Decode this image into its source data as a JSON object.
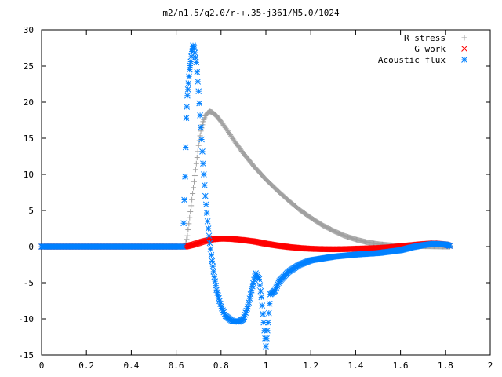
{
  "chart_data": {
    "type": "scatter",
    "title": "m2/n1.5/q2.0/r-+.35-j361/M5.0/1024",
    "xlabel": "",
    "ylabel": "",
    "xlim": [
      0,
      2
    ],
    "ylim": [
      -15,
      30
    ],
    "x_ticks": [
      "0",
      "0.2",
      "0.4",
      "0.6",
      "0.8",
      "1",
      "1.2",
      "1.4",
      "1.6",
      "1.8",
      "2"
    ],
    "y_ticks": [
      "30",
      "25",
      "20",
      "15",
      "10",
      "5",
      "0",
      "-5",
      "-10",
      "-15"
    ],
    "grid": false,
    "legend_position": "top-right",
    "series": [
      {
        "name": "R stress",
        "marker": "+",
        "color": "#a0a0a0",
        "points": [
          [
            0.0,
            0.0
          ],
          [
            0.1,
            0.0
          ],
          [
            0.2,
            0.0
          ],
          [
            0.3,
            0.0
          ],
          [
            0.4,
            0.0
          ],
          [
            0.5,
            0.0
          ],
          [
            0.6,
            0.0
          ],
          [
            0.64,
            0.0
          ],
          [
            0.65,
            1.5
          ],
          [
            0.66,
            4.0
          ],
          [
            0.67,
            6.5
          ],
          [
            0.68,
            9.0
          ],
          [
            0.69,
            11.5
          ],
          [
            0.7,
            14.0
          ],
          [
            0.71,
            16.0
          ],
          [
            0.72,
            17.3
          ],
          [
            0.73,
            18.1
          ],
          [
            0.74,
            18.5
          ],
          [
            0.75,
            18.7
          ],
          [
            0.76,
            18.6
          ],
          [
            0.78,
            18.1
          ],
          [
            0.8,
            17.3
          ],
          [
            0.83,
            16.0
          ],
          [
            0.86,
            14.6
          ],
          [
            0.9,
            12.9
          ],
          [
            0.95,
            11.0
          ],
          [
            1.0,
            9.3
          ],
          [
            1.05,
            7.8
          ],
          [
            1.1,
            6.4
          ],
          [
            1.15,
            5.1
          ],
          [
            1.2,
            4.0
          ],
          [
            1.25,
            3.0
          ],
          [
            1.3,
            2.2
          ],
          [
            1.35,
            1.5
          ],
          [
            1.4,
            1.0
          ],
          [
            1.45,
            0.6
          ],
          [
            1.5,
            0.35
          ],
          [
            1.55,
            0.2
          ],
          [
            1.6,
            0.1
          ],
          [
            1.7,
            0.05
          ],
          [
            1.8,
            0.0
          ],
          [
            1.82,
            0.0
          ]
        ]
      },
      {
        "name": "G work",
        "marker": "x",
        "color": "#ff0000",
        "points": [
          [
            0.0,
            0.0
          ],
          [
            0.2,
            0.0
          ],
          [
            0.4,
            0.0
          ],
          [
            0.6,
            0.0
          ],
          [
            0.64,
            0.0
          ],
          [
            0.68,
            0.3
          ],
          [
            0.72,
            0.7
          ],
          [
            0.76,
            1.0
          ],
          [
            0.8,
            1.1
          ],
          [
            0.85,
            1.05
          ],
          [
            0.9,
            0.9
          ],
          [
            0.95,
            0.7
          ],
          [
            1.0,
            0.4
          ],
          [
            1.05,
            0.15
          ],
          [
            1.1,
            -0.05
          ],
          [
            1.15,
            -0.2
          ],
          [
            1.2,
            -0.3
          ],
          [
            1.25,
            -0.35
          ],
          [
            1.3,
            -0.37
          ],
          [
            1.35,
            -0.35
          ],
          [
            1.4,
            -0.3
          ],
          [
            1.45,
            -0.25
          ],
          [
            1.5,
            -0.2
          ],
          [
            1.55,
            -0.1
          ],
          [
            1.6,
            0.05
          ],
          [
            1.65,
            0.2
          ],
          [
            1.7,
            0.35
          ],
          [
            1.75,
            0.45
          ],
          [
            1.8,
            0.3
          ],
          [
            1.82,
            0.1
          ]
        ]
      },
      {
        "name": "Acoustic flux",
        "marker": "*",
        "color": "#0080ff",
        "points": [
          [
            0.0,
            0.0
          ],
          [
            0.1,
            0.0
          ],
          [
            0.2,
            0.0
          ],
          [
            0.3,
            0.0
          ],
          [
            0.4,
            0.0
          ],
          [
            0.5,
            0.0
          ],
          [
            0.6,
            0.0
          ],
          [
            0.63,
            0.0
          ],
          [
            0.64,
            9.7
          ],
          [
            0.645,
            17.8
          ],
          [
            0.65,
            20.9
          ],
          [
            0.655,
            22.6
          ],
          [
            0.66,
            24.5
          ],
          [
            0.665,
            25.6
          ],
          [
            0.67,
            27.0
          ],
          [
            0.675,
            27.8
          ],
          [
            0.68,
            27.5
          ],
          [
            0.69,
            25.5
          ],
          [
            0.7,
            21.5
          ],
          [
            0.71,
            16.5
          ],
          [
            0.72,
            11.5
          ],
          [
            0.73,
            7.0
          ],
          [
            0.74,
            3.5
          ],
          [
            0.75,
            0.5
          ],
          [
            0.76,
            -2.0
          ],
          [
            0.77,
            -4.2
          ],
          [
            0.78,
            -6.0
          ],
          [
            0.8,
            -8.3
          ],
          [
            0.82,
            -9.6
          ],
          [
            0.85,
            -10.3
          ],
          [
            0.88,
            -10.4
          ],
          [
            0.9,
            -10.0
          ],
          [
            0.92,
            -8.3
          ],
          [
            0.94,
            -5.5
          ],
          [
            0.955,
            -3.7
          ],
          [
            0.97,
            -4.5
          ],
          [
            0.98,
            -7.0
          ],
          [
            0.99,
            -10.5
          ],
          [
            1.0,
            -13.8
          ],
          [
            1.01,
            -10.5
          ],
          [
            1.02,
            -6.6
          ],
          [
            1.04,
            -6.1
          ],
          [
            1.06,
            -4.8
          ],
          [
            1.1,
            -3.5
          ],
          [
            1.15,
            -2.5
          ],
          [
            1.2,
            -1.9
          ],
          [
            1.3,
            -1.4
          ],
          [
            1.4,
            -1.1
          ],
          [
            1.5,
            -0.9
          ],
          [
            1.6,
            -0.5
          ],
          [
            1.65,
            -0.1
          ],
          [
            1.7,
            0.2
          ],
          [
            1.75,
            0.4
          ],
          [
            1.8,
            0.3
          ],
          [
            1.82,
            0.1
          ]
        ]
      }
    ]
  }
}
